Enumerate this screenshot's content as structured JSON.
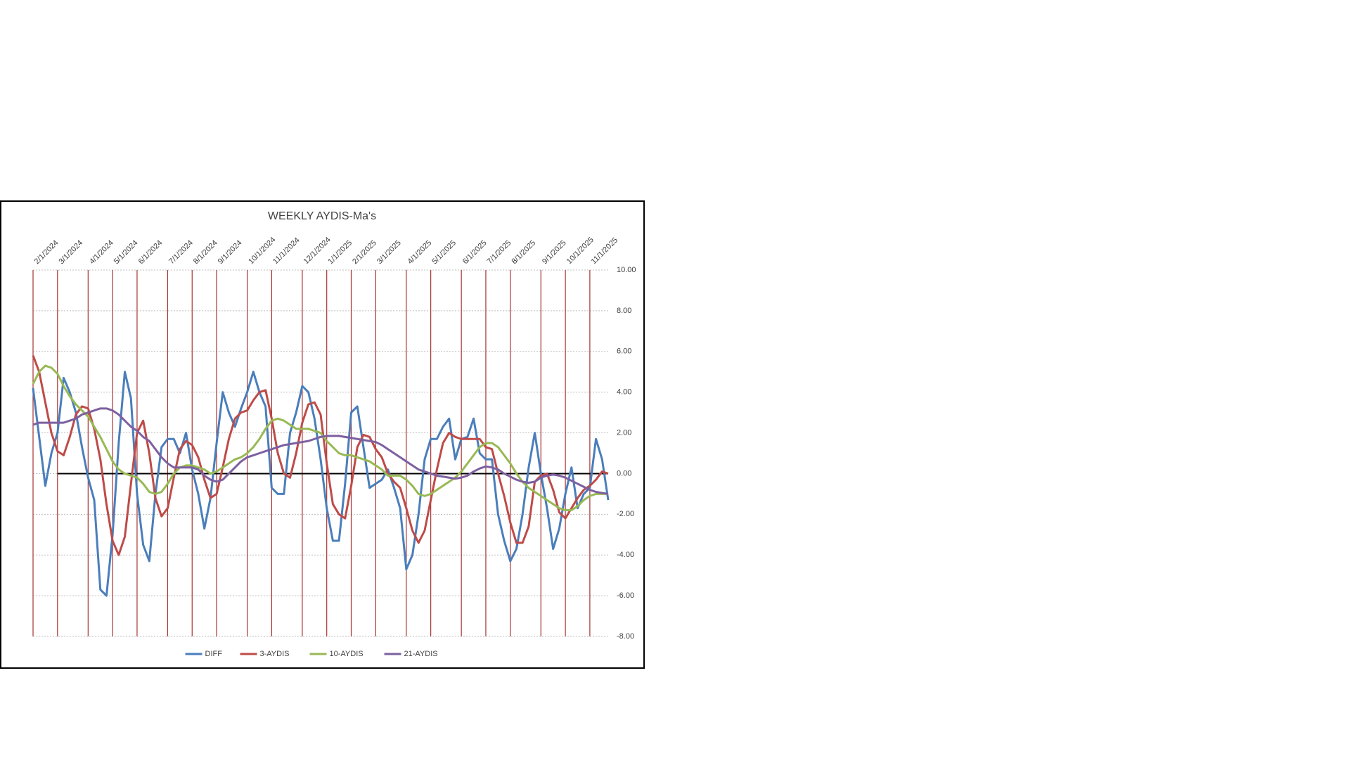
{
  "chart_data": {
    "type": "line",
    "title": "WEEKLY AYDIS-Ma's",
    "categories": [
      "2/1/2024",
      null,
      null,
      null,
      "3/1/2024",
      null,
      null,
      null,
      null,
      "4/1/2024",
      null,
      null,
      null,
      "5/1/2024",
      null,
      null,
      null,
      "6/1/2024",
      null,
      null,
      null,
      null,
      "7/1/2024",
      null,
      null,
      null,
      "8/1/2024",
      null,
      null,
      null,
      "9/1/2024",
      null,
      null,
      null,
      null,
      "10/1/2024",
      null,
      null,
      null,
      "11/1/2024",
      null,
      null,
      null,
      null,
      "12/1/2024",
      null,
      null,
      null,
      "1/1/2025",
      null,
      null,
      null,
      "2/1/2025",
      null,
      null,
      null,
      "3/1/2025",
      null,
      null,
      null,
      null,
      "4/1/2025",
      null,
      null,
      null,
      "5/1/2025",
      null,
      null,
      null,
      null,
      "6/1/2025",
      null,
      null,
      null,
      "7/1/2025",
      null,
      null,
      null,
      "8/1/2025",
      null,
      null,
      null,
      null,
      "9/1/2025",
      null,
      null,
      null,
      "10/1/2025",
      null,
      null,
      null,
      "11/1/2025",
      null,
      null,
      null
    ],
    "series": [
      {
        "name": "DIFF",
        "color": "#4a7ebb",
        "values": [
          4.2,
          1.8,
          -0.6,
          1.0,
          2.0,
          4.7,
          4.0,
          3.0,
          1.3,
          -0.2,
          -1.3,
          -5.7,
          -6.0,
          -3.0,
          1.5,
          5.0,
          3.7,
          -1.0,
          -3.5,
          -4.3,
          -1.0,
          1.3,
          1.7,
          1.7,
          1.0,
          2.0,
          0.2,
          -1.0,
          -2.7,
          -1.2,
          1.5,
          4.0,
          3.0,
          2.3,
          3.2,
          4.0,
          5.0,
          4.0,
          3.3,
          -0.7,
          -1.0,
          -1.0,
          2.0,
          3.0,
          4.3,
          4.0,
          2.7,
          0.7,
          -1.7,
          -3.3,
          -3.3,
          -0.5,
          3.0,
          3.3,
          1.3,
          -0.7,
          -0.5,
          -0.3,
          0.2,
          -0.7,
          -1.7,
          -4.7,
          -4.0,
          -2.0,
          0.7,
          1.7,
          1.7,
          2.3,
          2.7,
          0.7,
          1.7,
          1.8,
          2.7,
          1.0,
          0.7,
          0.7,
          -2.0,
          -3.3,
          -4.3,
          -3.7,
          -2.0,
          0.3,
          2.0,
          0.0,
          -1.7,
          -3.7,
          -2.7,
          -1.0,
          0.3,
          -1.7,
          -1.0,
          -0.7,
          1.7,
          0.7,
          -1.3
        ]
      },
      {
        "name": "3-AYDIS",
        "color": "#be4b48",
        "values": [
          5.8,
          5.0,
          3.5,
          2.0,
          1.1,
          0.9,
          1.8,
          2.9,
          3.3,
          3.2,
          2.2,
          0.7,
          -1.5,
          -3.3,
          -4.0,
          -3.1,
          -0.5,
          2.0,
          2.6,
          1.0,
          -1.2,
          -2.1,
          -1.7,
          -0.2,
          1.2,
          1.6,
          1.4,
          0.8,
          -0.3,
          -1.2,
          -1.0,
          0.3,
          1.7,
          2.7,
          3.0,
          3.1,
          3.6,
          4.0,
          4.1,
          2.7,
          1.0,
          0.0,
          -0.2,
          1.0,
          2.5,
          3.4,
          3.5,
          2.9,
          0.5,
          -1.5,
          -2.0,
          -2.2,
          -0.6,
          1.3,
          1.9,
          1.8,
          1.2,
          0.8,
          0.0,
          -0.4,
          -0.7,
          -1.7,
          -2.8,
          -3.4,
          -2.8,
          -1.3,
          0.2,
          1.5,
          2.0,
          1.8,
          1.7,
          1.7,
          1.7,
          1.7,
          1.3,
          1.2,
          0.0,
          -1.1,
          -2.4,
          -3.4,
          -3.4,
          -2.6,
          -0.4,
          -0.1,
          0.0,
          -0.8,
          -1.9,
          -2.2,
          -1.7,
          -1.2,
          -0.8,
          -0.6,
          -0.3,
          0.1,
          0.0
        ]
      },
      {
        "name": "10-AYDIS",
        "color": "#98b954",
        "values": [
          4.4,
          5.0,
          5.3,
          5.2,
          4.9,
          4.3,
          3.8,
          3.4,
          3.1,
          2.8,
          2.3,
          1.8,
          1.2,
          0.6,
          0.2,
          0.0,
          -0.1,
          -0.2,
          -0.5,
          -0.9,
          -1.0,
          -0.9,
          -0.5,
          0.0,
          0.3,
          0.4,
          0.4,
          0.3,
          0.2,
          0.0,
          0.1,
          0.3,
          0.5,
          0.7,
          0.8,
          1.0,
          1.3,
          1.7,
          2.2,
          2.6,
          2.7,
          2.6,
          2.4,
          2.2,
          2.2,
          2.2,
          2.1,
          2.0,
          1.6,
          1.3,
          1.0,
          0.9,
          0.9,
          0.8,
          0.7,
          0.6,
          0.4,
          0.2,
          -0.1,
          -0.1,
          -0.1,
          -0.3,
          -0.6,
          -1.0,
          -1.1,
          -1.0,
          -0.8,
          -0.6,
          -0.4,
          -0.2,
          0.1,
          0.5,
          0.9,
          1.3,
          1.5,
          1.5,
          1.3,
          0.9,
          0.5,
          0.0,
          -0.4,
          -0.7,
          -0.9,
          -1.1,
          -1.3,
          -1.5,
          -1.7,
          -1.8,
          -1.8,
          -1.6,
          -1.3,
          -1.1,
          -1.0,
          -1.0,
          -1.0
        ]
      },
      {
        "name": "21-AYDIS",
        "color": "#7d60a0",
        "values": [
          2.4,
          2.5,
          2.5,
          2.5,
          2.5,
          2.5,
          2.6,
          2.7,
          2.9,
          3.0,
          3.1,
          3.2,
          3.2,
          3.1,
          2.9,
          2.6,
          2.3,
          2.1,
          1.8,
          1.6,
          1.2,
          0.8,
          0.5,
          0.3,
          0.3,
          0.3,
          0.3,
          0.2,
          -0.1,
          -0.3,
          -0.4,
          -0.3,
          0.0,
          0.3,
          0.6,
          0.8,
          0.9,
          1.0,
          1.1,
          1.2,
          1.3,
          1.4,
          1.45,
          1.5,
          1.55,
          1.6,
          1.7,
          1.8,
          1.85,
          1.85,
          1.85,
          1.8,
          1.75,
          1.7,
          1.65,
          1.6,
          1.55,
          1.4,
          1.2,
          1.0,
          0.8,
          0.6,
          0.4,
          0.2,
          0.1,
          0.0,
          -0.1,
          -0.15,
          -0.2,
          -0.25,
          -0.2,
          -0.1,
          0.1,
          0.25,
          0.35,
          0.3,
          0.2,
          0.0,
          -0.15,
          -0.3,
          -0.4,
          -0.45,
          -0.4,
          -0.2,
          -0.1,
          -0.05,
          -0.1,
          -0.2,
          -0.35,
          -0.5,
          -0.65,
          -0.8,
          -0.9,
          -0.95,
          -1.0
        ]
      }
    ],
    "ylim": [
      -8,
      10
    ],
    "yticks": [
      {
        "value": -8,
        "label": "-8.00"
      },
      {
        "value": -6,
        "label": "-6.00"
      },
      {
        "value": -4,
        "label": "-4.00"
      },
      {
        "value": -2,
        "label": "-2.00"
      },
      {
        "value": 0,
        "label": "0.00"
      },
      {
        "value": 2,
        "label": "2.00"
      },
      {
        "value": 4,
        "label": "4.00"
      },
      {
        "value": 6,
        "label": "6.00"
      },
      {
        "value": 8,
        "label": "8.00"
      },
      {
        "value": 10,
        "label": "10.00"
      }
    ],
    "grid": true,
    "legend": "bottom"
  }
}
